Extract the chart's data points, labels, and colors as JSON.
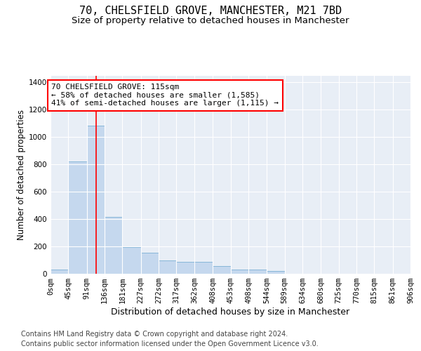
{
  "title1": "70, CHELSFIELD GROVE, MANCHESTER, M21 7BD",
  "title2": "Size of property relative to detached houses in Manchester",
  "xlabel": "Distribution of detached houses by size in Manchester",
  "ylabel": "Number of detached properties",
  "footnote1": "Contains HM Land Registry data © Crown copyright and database right 2024.",
  "footnote2": "Contains public sector information licensed under the Open Government Licence v3.0.",
  "annotation_line1": "70 CHELSFIELD GROVE: 115sqm",
  "annotation_line2": "← 58% of detached houses are smaller (1,585)",
  "annotation_line3": "41% of semi-detached houses are larger (1,115) →",
  "bar_edges": [
    0,
    45,
    91,
    136,
    181,
    227,
    272,
    317,
    362,
    408,
    453,
    498,
    544,
    589,
    634,
    680,
    725,
    770,
    815,
    861,
    906
  ],
  "bar_heights": [
    30,
    820,
    1085,
    415,
    195,
    155,
    100,
    85,
    85,
    55,
    30,
    30,
    20,
    0,
    0,
    0,
    0,
    0,
    0,
    0
  ],
  "bar_color": "#c5d8ee",
  "bar_edge_color": "#7aafd4",
  "red_line_x": 115,
  "ylim": [
    0,
    1450
  ],
  "yticks": [
    0,
    200,
    400,
    600,
    800,
    1000,
    1200,
    1400
  ],
  "plot_bg": "#e8eef6",
  "grid_color": "#ffffff",
  "title1_fontsize": 11,
  "title2_fontsize": 9.5,
  "xlabel_fontsize": 9,
  "ylabel_fontsize": 8.5,
  "tick_fontsize": 7.5,
  "annotation_fontsize": 8,
  "footnote_fontsize": 7
}
